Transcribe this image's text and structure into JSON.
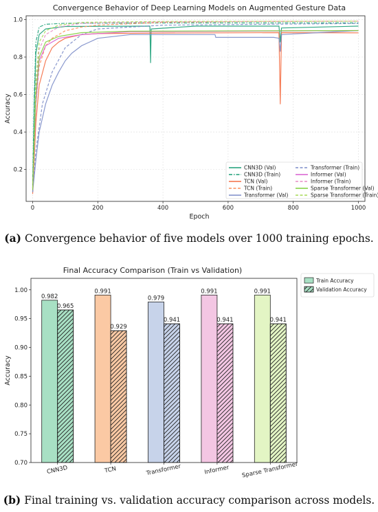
{
  "figure_a": {
    "caption_label": "(a)",
    "caption_text": "Convergence behavior of five models over 1000 training epochs."
  },
  "figure_b": {
    "caption_label": "(b)",
    "caption_text": "Final training vs. validation accuracy comparison across models."
  },
  "chart_data": [
    {
      "type": "line",
      "title": "Convergence Behavior of Deep Learning Models on Augmented Gesture Data",
      "xlabel": "Epoch",
      "ylabel": "Accuracy",
      "xlim": [
        -20,
        1020
      ],
      "ylim": [
        0.03,
        1.02
      ],
      "xticks": [
        0,
        200,
        400,
        600,
        800,
        1000
      ],
      "yticks": [
        0.2,
        0.4,
        0.6,
        0.8,
        1.0
      ],
      "grid": true,
      "legend_position": "lower-right",
      "series": [
        {
          "name": "CNN3D (Val)",
          "color": "#1a9e77",
          "dash": "solid",
          "points": [
            [
              0,
              0.1
            ],
            [
              5,
              0.55
            ],
            [
              10,
              0.82
            ],
            [
              20,
              0.92
            ],
            [
              40,
              0.95
            ],
            [
              100,
              0.963
            ],
            [
              360,
              0.965
            ],
            [
              362,
              0.77
            ],
            [
              364,
              0.95
            ],
            [
              500,
              0.965
            ],
            [
              756,
              0.965
            ],
            [
              760,
              0.88
            ],
            [
              764,
              0.955
            ],
            [
              1000,
              0.965
            ]
          ]
        },
        {
          "name": "CNN3D (Train)",
          "color": "#1a9e77",
          "dash": "dashdot",
          "points": [
            [
              0,
              0.12
            ],
            [
              5,
              0.6
            ],
            [
              10,
              0.88
            ],
            [
              20,
              0.96
            ],
            [
              40,
              0.975
            ],
            [
              100,
              0.98
            ],
            [
              400,
              0.982
            ],
            [
              1000,
              0.982
            ]
          ]
        },
        {
          "name": "TCN (Val)",
          "color": "#f46d43",
          "dash": "solid",
          "points": [
            [
              0,
              0.07
            ],
            [
              10,
              0.45
            ],
            [
              20,
              0.65
            ],
            [
              40,
              0.78
            ],
            [
              60,
              0.85
            ],
            [
              80,
              0.88
            ],
            [
              100,
              0.9
            ],
            [
              150,
              0.92
            ],
            [
              200,
              0.925
            ],
            [
              400,
              0.928
            ],
            [
              756,
              0.93
            ],
            [
              760,
              0.55
            ],
            [
              764,
              0.93
            ],
            [
              1000,
              0.929
            ]
          ]
        },
        {
          "name": "TCN (Train)",
          "color": "#fc8d59",
          "dash": "dashed",
          "points": [
            [
              0,
              0.08
            ],
            [
              10,
              0.55
            ],
            [
              20,
              0.75
            ],
            [
              40,
              0.86
            ],
            [
              60,
              0.9
            ],
            [
              100,
              0.94
            ],
            [
              150,
              0.96
            ],
            [
              200,
              0.97
            ],
            [
              400,
              0.985
            ],
            [
              700,
              0.99
            ],
            [
              1000,
              0.991
            ]
          ]
        },
        {
          "name": "Transformer (Val)",
          "color": "#7b8cc8",
          "dash": "solid",
          "points": [
            [
              0,
              0.08
            ],
            [
              10,
              0.25
            ],
            [
              20,
              0.4
            ],
            [
              40,
              0.55
            ],
            [
              60,
              0.65
            ],
            [
              80,
              0.72
            ],
            [
              100,
              0.78
            ],
            [
              120,
              0.82
            ],
            [
              150,
              0.86
            ],
            [
              200,
              0.9
            ],
            [
              300,
              0.92
            ],
            [
              560,
              0.92
            ],
            [
              562,
              0.905
            ],
            [
              740,
              0.905
            ],
            [
              756,
              0.9
            ],
            [
              760,
              0.83
            ],
            [
              764,
              0.92
            ],
            [
              1000,
              0.941
            ]
          ]
        },
        {
          "name": "Transformer (Train)",
          "color": "#7b8cc8",
          "dash": "dashed",
          "points": [
            [
              0,
              0.08
            ],
            [
              10,
              0.3
            ],
            [
              30,
              0.55
            ],
            [
              60,
              0.72
            ],
            [
              100,
              0.85
            ],
            [
              150,
              0.92
            ],
            [
              200,
              0.95
            ],
            [
              400,
              0.97
            ],
            [
              1000,
              0.979
            ]
          ]
        },
        {
          "name": "Informer (Val)",
          "color": "#d95fd0",
          "dash": "solid",
          "points": [
            [
              0,
              0.09
            ],
            [
              10,
              0.55
            ],
            [
              20,
              0.78
            ],
            [
              40,
              0.86
            ],
            [
              80,
              0.9
            ],
            [
              150,
              0.92
            ],
            [
              300,
              0.935
            ],
            [
              1000,
              0.941
            ]
          ]
        },
        {
          "name": "Informer (Train)",
          "color": "#e78ac3",
          "dash": "dashed",
          "points": [
            [
              0,
              0.1
            ],
            [
              10,
              0.62
            ],
            [
              20,
              0.84
            ],
            [
              40,
              0.92
            ],
            [
              80,
              0.96
            ],
            [
              150,
              0.98
            ],
            [
              400,
              0.988
            ],
            [
              1000,
              0.991
            ]
          ]
        },
        {
          "name": "Sparse Transformer (Val)",
          "color": "#7fcf3c",
          "dash": "solid",
          "points": [
            [
              0,
              0.09
            ],
            [
              10,
              0.6
            ],
            [
              20,
              0.8
            ],
            [
              40,
              0.88
            ],
            [
              80,
              0.91
            ],
            [
              150,
              0.93
            ],
            [
              300,
              0.938
            ],
            [
              1000,
              0.941
            ]
          ]
        },
        {
          "name": "Sparse Transformer (Train)",
          "color": "#a6d854",
          "dash": "dashed",
          "points": [
            [
              0,
              0.1
            ],
            [
              10,
              0.68
            ],
            [
              20,
              0.88
            ],
            [
              40,
              0.94
            ],
            [
              80,
              0.97
            ],
            [
              150,
              0.985
            ],
            [
              400,
              0.99
            ],
            [
              1000,
              0.991
            ]
          ]
        }
      ]
    },
    {
      "type": "bar",
      "title": "Final Accuracy Comparison (Train vs Validation)",
      "xlabel": "",
      "ylabel": "Accuracy",
      "ylim": [
        0.7,
        1.02
      ],
      "yticks": [
        0.7,
        0.75,
        0.8,
        0.85,
        0.9,
        0.95,
        1.0
      ],
      "categories": [
        "CNN3D",
        "TCN",
        "Transformer",
        "Informer",
        "Sparse Transformer"
      ],
      "series": [
        {
          "name": "Train Accuracy",
          "values": [
            0.982,
            0.991,
            0.979,
            0.991,
            0.991
          ],
          "hatch": "none"
        },
        {
          "name": "Validation Accuracy",
          "values": [
            0.965,
            0.929,
            0.941,
            0.941,
            0.941
          ],
          "hatch": "diagonal"
        }
      ],
      "value_labels": {
        "Train Accuracy": [
          "0.982",
          "0.991",
          "0.979",
          "0.991",
          "0.991"
        ],
        "Validation Accuracy": [
          "0.965",
          "0.929",
          "0.941",
          "0.941",
          "0.941"
        ]
      },
      "colors": [
        "#a8e0c4",
        "#fbc9a4",
        "#c7d3ea",
        "#f3c6e3",
        "#e3f5c4"
      ],
      "legend_position": "outside-top-right"
    }
  ]
}
